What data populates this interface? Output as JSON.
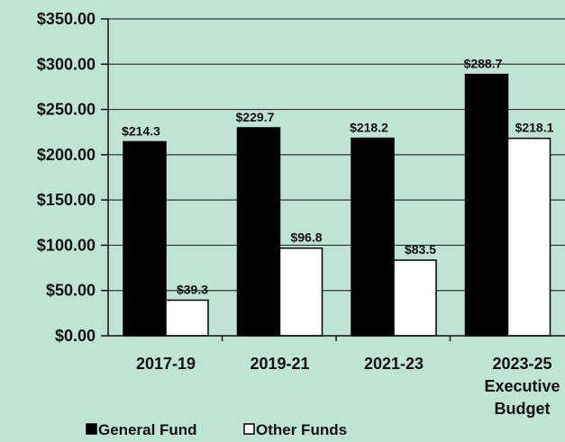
{
  "chart_data": {
    "type": "bar",
    "categories": [
      [
        "2017-19"
      ],
      [
        "2019-21"
      ],
      [
        "2021-23"
      ],
      [
        "2023-25",
        "Executive",
        "Budget"
      ]
    ],
    "series": [
      {
        "name": "General Fund",
        "values": [
          214.3,
          229.7,
          218.2,
          288.7
        ],
        "color": "#000000",
        "labels": [
          "$214.3",
          "$229.7",
          "$218.2",
          "$288.7"
        ]
      },
      {
        "name": "Other Funds",
        "values": [
          39.3,
          96.8,
          83.5,
          218.1
        ],
        "color": "#ffffff",
        "labels": [
          "$39.3",
          "$96.8",
          "$83.5",
          "$218.1"
        ]
      }
    ],
    "yticks": [
      "$0.00",
      "$50.00",
      "$100.00",
      "$150.00",
      "$200.00",
      "$250.00",
      "$300.00",
      "$350.00"
    ],
    "ylim": [
      0,
      350
    ],
    "grid": true,
    "legend": "bottom",
    "colors": {
      "background": "#bfe3d5",
      "axis": "#111111"
    }
  }
}
